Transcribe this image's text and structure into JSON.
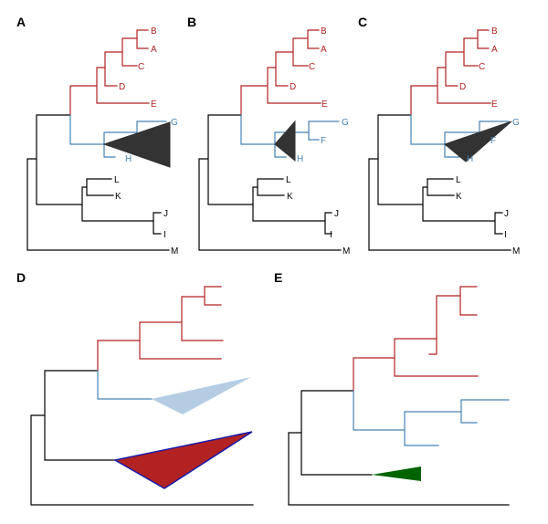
{
  "colors": {
    "black": "#000000",
    "red": "#b22222",
    "blue": "#4682b4",
    "collapse_dark": "#333333",
    "collapse_light": "#b5cde3",
    "collapse_red_fill": "#b22222",
    "collapse_red_border": "#1a1aa6",
    "collapse_green": "#006400"
  },
  "panels": [
    {
      "label": "A",
      "tips": {
        "B": "B",
        "A": "A",
        "C": "C",
        "D": "D",
        "E": "E",
        "G": "G",
        "H": "H",
        "L": "L",
        "K": "K",
        "J": "J",
        "I": "I",
        "M": "M"
      }
    },
    {
      "label": "B",
      "tips": {
        "B": "B",
        "A": "A",
        "C": "C",
        "D": "D",
        "E": "E",
        "G": "G",
        "F": "F",
        "H": "H",
        "L": "L",
        "K": "K",
        "J": "J",
        "I": "I",
        "M": "M"
      }
    },
    {
      "label": "C",
      "tips": {
        "B": "B",
        "A": "A",
        "C": "C",
        "D": "D",
        "E": "E",
        "G": "G",
        "F": "F",
        "H": "H",
        "L": "L",
        "K": "K",
        "J": "J",
        "I": "I",
        "M": "M"
      }
    },
    {
      "label": "D"
    },
    {
      "label": "E"
    }
  ]
}
